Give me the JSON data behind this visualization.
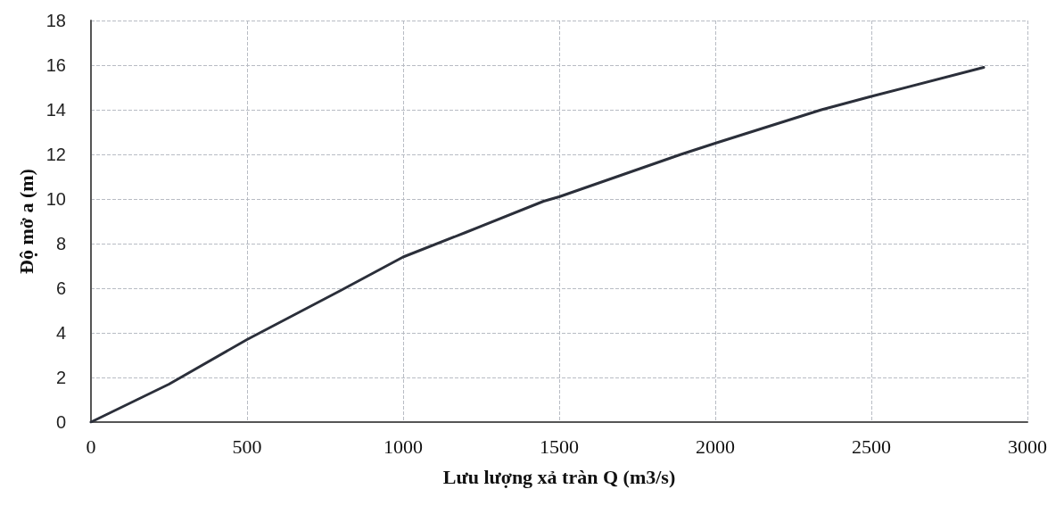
{
  "chart_data": {
    "type": "line",
    "xlabel": "Lưu lượng xả tràn Q (m3/s)",
    "ylabel": "Độ mở a (m)",
    "x": [
      0,
      250,
      500,
      800,
      1000,
      1200,
      1450,
      1500,
      1890,
      2000,
      2340,
      2500,
      2860
    ],
    "series": [
      {
        "color": "#2b2f3a",
        "values": [
          0,
          1.7,
          3.7,
          5.9,
          7.4,
          8.5,
          9.9,
          10.1,
          12.0,
          12.5,
          14.0,
          14.6,
          15.9
        ]
      }
    ],
    "xlim": [
      0,
      3000
    ],
    "xticks": [
      0,
      500,
      1000,
      1500,
      2000,
      2500,
      3000
    ],
    "ylim": [
      0,
      18
    ],
    "yticks": [
      0,
      2,
      4,
      6,
      8,
      10,
      12,
      14,
      16,
      18
    ],
    "grid": true,
    "marker": "none",
    "line_style": "solid"
  }
}
